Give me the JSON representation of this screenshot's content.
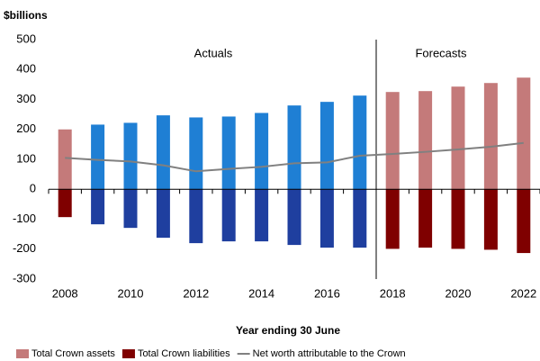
{
  "chart_data": {
    "type": "bar",
    "y_axis_label": "$billions",
    "x_axis_label": "Year ending 30 June",
    "annotations": [
      "Actuals",
      "Forecasts"
    ],
    "categories": [
      "2008",
      null,
      "2010",
      null,
      "2012",
      null,
      "2014",
      null,
      "2016",
      null,
      "2018",
      null,
      "2020",
      null,
      "2022"
    ],
    "series": [
      {
        "name": "Total Crown assets",
        "color": "#c47a7a",
        "colors": [
          "#c47a7a",
          "#1f7fd4",
          "#1f7fd4",
          "#1f7fd4",
          "#1f7fd4",
          "#1f7fd4",
          "#1f7fd4",
          "#1f7fd4",
          "#1f7fd4",
          "#1f7fd4",
          "#c47a7a",
          "#c47a7a",
          "#c47a7a",
          "#c47a7a",
          "#c47a7a"
        ],
        "values": [
          200,
          216,
          222,
          247,
          240,
          243,
          255,
          280,
          292,
          313,
          325,
          328,
          343,
          355,
          373
        ]
      },
      {
        "name": "Total Crown liabilities",
        "color": "#7f0000",
        "colors": [
          "#7f0000",
          "#1f3f9f",
          "#1f3f9f",
          "#1f3f9f",
          "#1f3f9f",
          "#1f3f9f",
          "#1f3f9f",
          "#1f3f9f",
          "#1f3f9f",
          "#1f3f9f",
          "#7f0000",
          "#7f0000",
          "#7f0000",
          "#7f0000",
          "#7f0000"
        ],
        "values": [
          -93,
          -117,
          -129,
          -162,
          -180,
          -174,
          -174,
          -186,
          -195,
          -195,
          -199,
          -195,
          -199,
          -202,
          -213
        ]
      },
      {
        "name": "Net worth attributable to the Crown",
        "color": "#808080",
        "line": true,
        "values": [
          105,
          98,
          93,
          80,
          60,
          68,
          75,
          87,
          90,
          112,
          118,
          125,
          133,
          142,
          155
        ]
      }
    ],
    "ylim": [
      -300,
      500
    ],
    "yticks": [
      -300,
      -200,
      -100,
      0,
      100,
      200,
      300,
      400,
      500
    ]
  }
}
